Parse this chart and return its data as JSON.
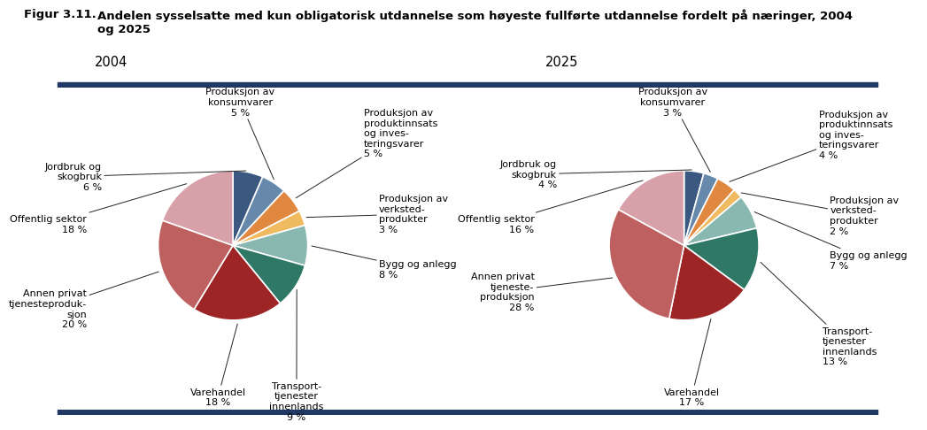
{
  "title_label": "Figur 3.11.",
  "title_text": "Andelen sysselsatte med kun obligatorisk utdannelse som høyeste fullførte utdannelse fordelt på næringer, 2004\nog 2025",
  "chart1_year": "2004",
  "chart2_year": "2025",
  "values_2004": [
    6,
    5,
    5,
    3,
    8,
    9,
    18,
    20,
    18
  ],
  "values_2025": [
    4,
    3,
    4,
    2,
    7,
    13,
    17,
    28,
    16
  ],
  "colors": [
    "#3a5880",
    "#6688aa",
    "#e08840",
    "#f0bb60",
    "#88b8b0",
    "#2e7865",
    "#9e2525",
    "#bf6060",
    "#d8a0a8"
  ],
  "bg_color": "#ffffff",
  "line_color": "#1f3864",
  "ann_fontsize": 8.0,
  "year_fontsize": 10.5,
  "title_fontsize": 9.5,
  "ann_2004": [
    [
      0,
      "Jordbruk og\nskogbruk\n6 %",
      -1.75,
      0.92,
      "right",
      "center"
    ],
    [
      1,
      "Produksjon av\nkonsumvarer\n5 %",
      0.1,
      1.72,
      "center",
      "bottom"
    ],
    [
      2,
      "Produksjon av\nproduktinnsats\nog inves-\nteringsvarer\n5 %",
      1.75,
      1.5,
      "left",
      "center"
    ],
    [
      3,
      "Produksjon av\nverksted-\nprodukter\n3 %",
      1.95,
      0.42,
      "left",
      "center"
    ],
    [
      4,
      "Bygg og anlegg\n8 %",
      1.95,
      -0.32,
      "left",
      "center"
    ],
    [
      5,
      "Transport-\ntjenester\ninnenlands\n9 %",
      0.85,
      -1.82,
      "center",
      "top"
    ],
    [
      6,
      "Varehandel\n18 %",
      -0.2,
      -1.9,
      "center",
      "top"
    ],
    [
      7,
      "Annen privat\ntjenesteproduk-\nsjon\n20 %",
      -1.95,
      -0.85,
      "right",
      "center"
    ],
    [
      8,
      "Offentlig sektor\n18 %",
      -1.95,
      0.28,
      "right",
      "center"
    ]
  ],
  "ann_2025": [
    [
      0,
      "Jordbruk og\nskogbruk\n4 %",
      -1.7,
      0.95,
      "right",
      "center"
    ],
    [
      1,
      "Produksjon av\nkonsumvarer\n3 %",
      -0.15,
      1.72,
      "center",
      "bottom"
    ],
    [
      2,
      "Produksjon av\nproduktinnsats\nog inves-\nteringsvarer\n4 %",
      1.8,
      1.48,
      "left",
      "center"
    ],
    [
      3,
      "Produksjon av\nverksted-\nprodukter\n2 %",
      1.95,
      0.4,
      "left",
      "center"
    ],
    [
      4,
      "Bygg og anlegg\n7 %",
      1.95,
      -0.2,
      "left",
      "center"
    ],
    [
      5,
      "Transport-\ntjenester\ninnenlands\n13 %",
      1.85,
      -1.35,
      "left",
      "center"
    ],
    [
      6,
      "Varehandel\n17 %",
      0.1,
      -1.9,
      "center",
      "top"
    ],
    [
      7,
      "Annen privat\ntjeneste-\nproduksjon\n28 %",
      -2.0,
      -0.62,
      "right",
      "center"
    ],
    [
      8,
      "Offentlig sektor\n16 %",
      -2.0,
      0.28,
      "right",
      "center"
    ]
  ]
}
